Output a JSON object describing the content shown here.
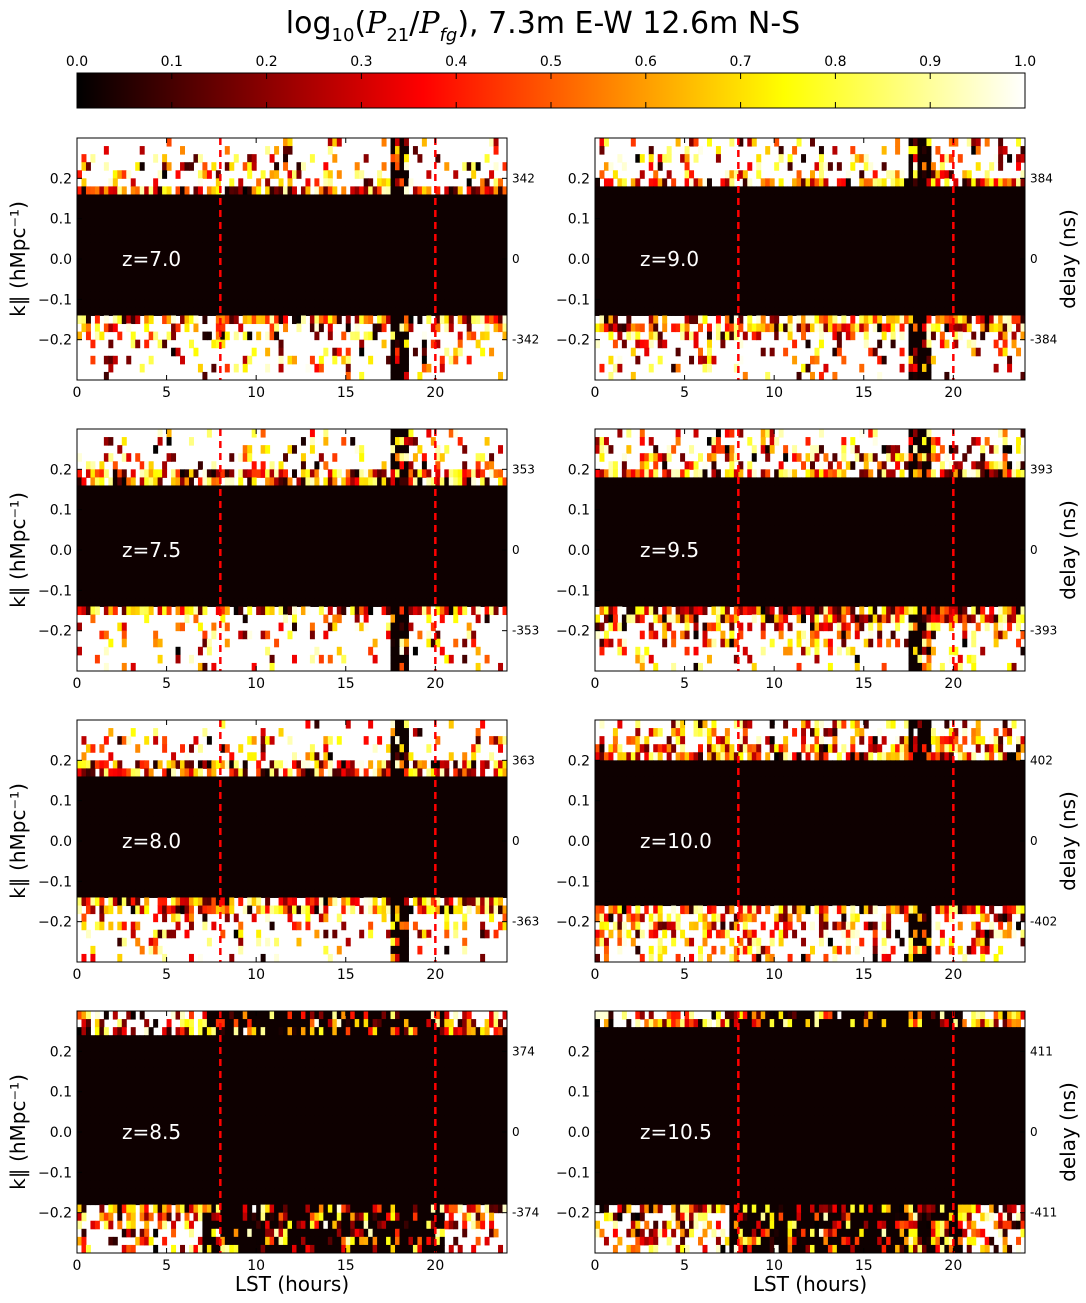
{
  "figure": {
    "title": "log10(P21/Pfg), 7.3m E-W 12.6m N-S",
    "title_parts": {
      "prefix": "log",
      "sub": "10",
      "expr_open": "(",
      "p": "P",
      "p_sub1": "21",
      "slash": "/",
      "p2": "P",
      "p_sub2": "fg",
      "suffix": "), 7.3m E-W 12.6m N-S"
    }
  },
  "colorbar": {
    "colormap": "hot",
    "range": [
      0,
      1
    ],
    "ticks": [
      "0.0",
      "0.1",
      "0.2",
      "0.3",
      "0.4",
      "0.5",
      "0.6",
      "0.7",
      "0.8",
      "0.9",
      "1.0"
    ],
    "colors": [
      "#000000",
      "#ff0000",
      "#ffff00",
      "#ffffff"
    ]
  },
  "axes_text": {
    "xlabel": "LST (hours)",
    "ylabel": "k∥ (hMpc⁻¹)",
    "ylabel_right": "delay (ns)"
  },
  "chart_data": {
    "type": "heatmap",
    "x_range": [
      0,
      24
    ],
    "y_range": [
      -0.3,
      0.3
    ],
    "x_ticks": [
      0,
      5,
      10,
      15,
      20
    ],
    "y_ticks": [
      0.2,
      0.1,
      0.0,
      -0.1,
      -0.2
    ],
    "y_tick_labels": [
      "0.2",
      "0.1",
      "0.0",
      "−0.1",
      "−0.2"
    ],
    "x_tick_labels": [
      "0",
      "5",
      "10",
      "15",
      "20"
    ],
    "reference_lines_lst": [
      8,
      20
    ],
    "reference_line_color": "#ff0000",
    "panels": [
      {
        "z": "z=7.0",
        "delay_labels": [
          "342",
          "0",
          "-342"
        ],
        "wedge": [
          -0.135,
          0.155
        ],
        "noise": 0.45,
        "transit": [
          17.4,
          18.6
        ]
      },
      {
        "z": "z=9.0",
        "delay_labels": [
          "384",
          "0",
          "-384"
        ],
        "wedge": [
          -0.15,
          0.175
        ],
        "noise": 0.45,
        "transit": [
          17.4,
          18.8
        ]
      },
      {
        "z": "z=7.5",
        "delay_labels": [
          "353",
          "0",
          "-353"
        ],
        "wedge": [
          -0.14,
          0.165
        ],
        "noise": 0.3,
        "transit": [
          17.5,
          18.6
        ]
      },
      {
        "z": "z=9.5",
        "delay_labels": [
          "393",
          "0",
          "-393"
        ],
        "wedge": [
          -0.145,
          0.18
        ],
        "noise": 0.55,
        "transit": [
          17.4,
          18.8
        ]
      },
      {
        "z": "z=8.0",
        "delay_labels": [
          "363",
          "0",
          "-363"
        ],
        "wedge": [
          -0.145,
          0.165
        ],
        "noise": 0.35,
        "transit": [
          17.4,
          18.6
        ]
      },
      {
        "z": "z=10.0",
        "delay_labels": [
          "402",
          "0",
          "-402"
        ],
        "wedge": [
          -0.16,
          0.2
        ],
        "noise": 0.65,
        "transit": [
          17.4,
          18.8
        ]
      },
      {
        "z": "z=8.5",
        "delay_labels": [
          "374",
          "0",
          "-374"
        ],
        "wedge": [
          -0.18,
          0.24
        ],
        "noise": 0.7,
        "transit": [
          7.0,
          20.5
        ]
      },
      {
        "z": "z=10.5",
        "delay_labels": [
          "411",
          "0",
          "-411"
        ],
        "wedge": [
          -0.18,
          0.26
        ],
        "noise": 0.75,
        "transit": [
          7.5,
          20.5
        ]
      }
    ]
  }
}
